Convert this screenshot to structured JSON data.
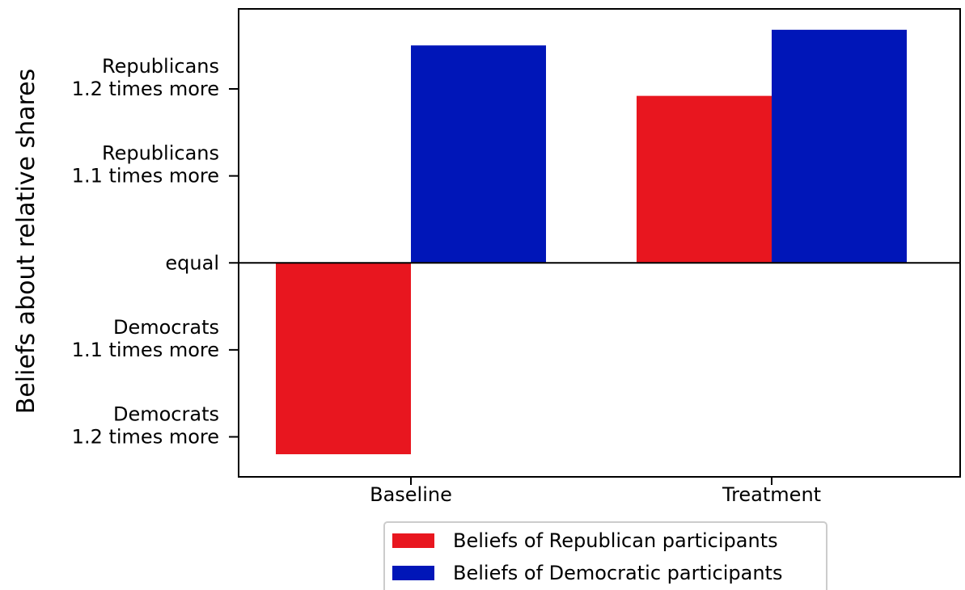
{
  "chart_data": {
    "type": "bar",
    "title": "",
    "xlabel": "",
    "ylabel": "Beliefs about relative shares",
    "categories": [
      "Baseline",
      "Treatment"
    ],
    "series": [
      {
        "name": "Beliefs of Republican participants",
        "color": "#e8161f",
        "values": [
          -1.1,
          0.96
        ]
      },
      {
        "name": "Beliefs of Democratic participants",
        "color": "#0016b8",
        "values": [
          1.25,
          1.34
        ]
      }
    ],
    "ylim": [
      -1.23,
      1.46
    ],
    "yticks": [
      {
        "value": 1.0,
        "lines": [
          "Republicans",
          "1.2 times more"
        ]
      },
      {
        "value": 0.5,
        "lines": [
          "Republicans",
          "1.1 times more"
        ]
      },
      {
        "value": 0.0,
        "lines": [
          "equal"
        ]
      },
      {
        "value": -0.5,
        "lines": [
          "Democrats",
          "1.1 times more"
        ]
      },
      {
        "value": -1.0,
        "lines": [
          "Democrats",
          "1.2 times more"
        ]
      }
    ],
    "zero_line": true,
    "grid": false,
    "legend_position": "bottom-center"
  }
}
